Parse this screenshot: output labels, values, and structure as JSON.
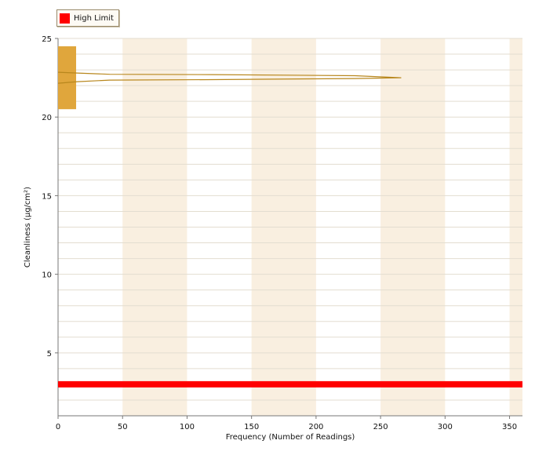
{
  "legend": {
    "label": "High Limit"
  },
  "colors": {
    "high_limit": "#ff0000",
    "histogram": "#e0a63c",
    "curve": "#b8871d",
    "band": "#f9efe0",
    "grid": "#e3ddd0"
  },
  "chart_data": {
    "type": "bar",
    "orientation": "horizontal",
    "xlabel": "Frequency (Number of Readings)",
    "ylabel": "Cleanliness (µg/cm²)",
    "xlim": [
      0,
      360
    ],
    "ylim": [
      1,
      25
    ],
    "xticks": [
      0,
      50,
      100,
      150,
      200,
      250,
      300,
      350
    ],
    "yticks": [
      5,
      10,
      15,
      20,
      25
    ],
    "histogram": [
      {
        "bin_low": 20.5,
        "bin_high": 24.5,
        "count": 14
      }
    ],
    "distribution_curve": [
      {
        "x": 0,
        "y": 22.85
      },
      {
        "x": 15,
        "y": 22.8
      },
      {
        "x": 40,
        "y": 22.72
      },
      {
        "x": 120,
        "y": 22.7
      },
      {
        "x": 230,
        "y": 22.63
      },
      {
        "x": 266,
        "y": 22.5
      },
      {
        "x": 230,
        "y": 22.45
      },
      {
        "x": 120,
        "y": 22.38
      },
      {
        "x": 40,
        "y": 22.35
      },
      {
        "x": 15,
        "y": 22.25
      },
      {
        "x": 0,
        "y": 22.15
      }
    ],
    "series": [
      {
        "name": "High Limit",
        "y": 3,
        "type": "line"
      }
    ],
    "grid": true,
    "legend_position": "top-left"
  }
}
